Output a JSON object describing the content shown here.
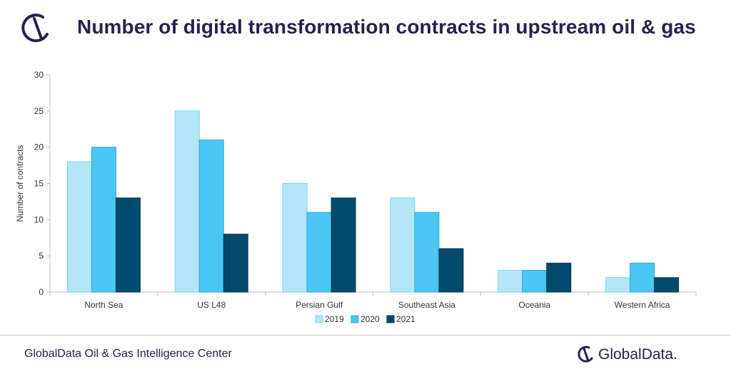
{
  "header": {
    "title": "Number of digital transformation contracts in upstream oil & gas",
    "logo_icon": "globaldata-logo-icon"
  },
  "footer": {
    "source": "GlobalData Oil & Gas Intelligence Center",
    "brand": "GlobalData."
  },
  "colors": {
    "title": "#27224f",
    "s2019": "#b3e6f7",
    "s2020": "#4cc6f2",
    "s2021": "#004a6b"
  },
  "chart_data": {
    "type": "bar",
    "title": "Number of digital transformation contracts in upstream oil & gas",
    "xlabel": "",
    "ylabel": "Number of contracts",
    "categories": [
      "North Sea",
      "US L48",
      "Persian Gulf",
      "Southeast Asia",
      "Oceania",
      "Western Africa"
    ],
    "series": [
      {
        "name": "2019",
        "values": [
          18,
          25,
          15,
          13,
          3,
          2
        ],
        "color": "#b3e6f7"
      },
      {
        "name": "2020",
        "values": [
          20,
          21,
          11,
          11,
          3,
          4
        ],
        "color": "#4cc6f2"
      },
      {
        "name": "2021",
        "values": [
          13,
          8,
          13,
          6,
          4,
          2
        ],
        "color": "#004a6b"
      }
    ],
    "ylim": [
      0,
      30
    ],
    "yticks": [
      0,
      5,
      10,
      15,
      20,
      25,
      30
    ],
    "grid": false,
    "legend_position": "bottom"
  }
}
